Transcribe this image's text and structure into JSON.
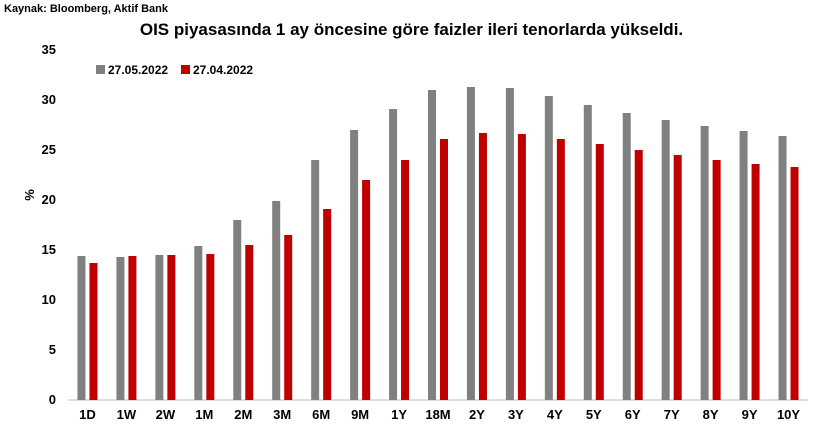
{
  "source": "Kaynak: Bloomberg, Aktif Bank",
  "title": "OIS piyasasında 1 ay öncesine göre faizler ileri tenorlarda yükseldi.",
  "chart_data": {
    "type": "bar",
    "title": "OIS piyasasında 1 ay öncesine göre faizler ileri tenorlarda yükseldi.",
    "xlabel": "",
    "ylabel": "%",
    "ylim": [
      0,
      35
    ],
    "yticks": [
      0,
      5,
      10,
      15,
      20,
      25,
      30,
      35
    ],
    "grid": false,
    "legend_position": "top-left",
    "categories": [
      "1D",
      "1W",
      "2W",
      "1M",
      "2M",
      "3M",
      "6M",
      "9M",
      "1Y",
      "18M",
      "2Y",
      "3Y",
      "4Y",
      "5Y",
      "6Y",
      "7Y",
      "8Y",
      "9Y",
      "10Y"
    ],
    "series": [
      {
        "name": "27.05.2022",
        "color": "#808080",
        "values": [
          14.4,
          14.3,
          14.5,
          15.4,
          18.0,
          19.9,
          24.0,
          27.0,
          29.1,
          31.0,
          31.3,
          31.2,
          30.4,
          29.5,
          28.7,
          28.0,
          27.4,
          26.9,
          26.4
        ]
      },
      {
        "name": "27.04.2022",
        "color": "#C00000",
        "values": [
          13.7,
          14.4,
          14.5,
          14.6,
          15.5,
          16.5,
          19.1,
          22.0,
          24.0,
          26.1,
          26.7,
          26.6,
          26.1,
          25.6,
          25.0,
          24.5,
          24.0,
          23.6,
          23.3
        ]
      }
    ]
  }
}
